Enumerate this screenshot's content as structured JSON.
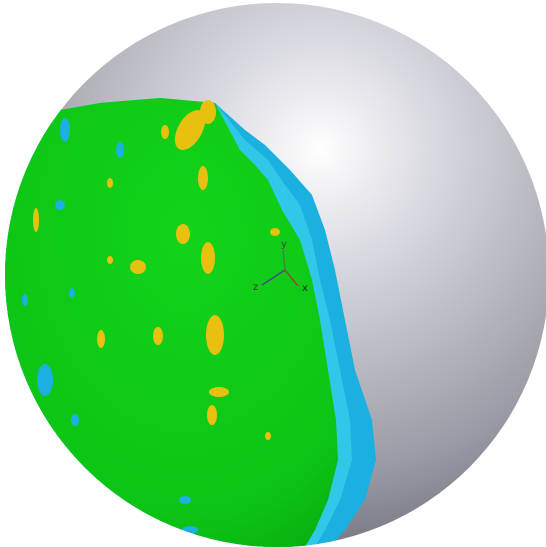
{
  "axis_triad": {
    "y": "y",
    "z": "z",
    "x": "x"
  }
}
